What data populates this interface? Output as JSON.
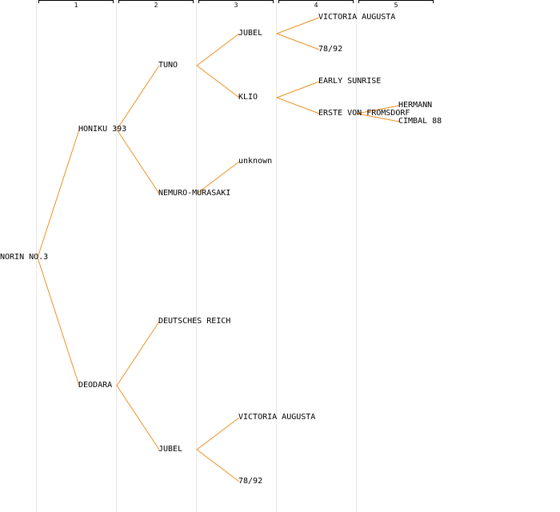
{
  "colors": {
    "edge": "#f0901e",
    "grid": "#e6e6e6",
    "text": "#000000"
  },
  "generations": [
    "1",
    "2",
    "3",
    "4",
    "5"
  ],
  "nodes": [
    {
      "id": "n0",
      "label": "NORIN NO.3",
      "gen": 0,
      "row": 15
    },
    {
      "id": "n1",
      "label": "HONIKU 393",
      "gen": 1,
      "row": 7
    },
    {
      "id": "n2",
      "label": "DEODARA",
      "gen": 1,
      "row": 23
    },
    {
      "id": "n3",
      "label": "TUNO",
      "gen": 2,
      "row": 3
    },
    {
      "id": "n4",
      "label": "NEMURO-MURASAKI",
      "gen": 2,
      "row": 11
    },
    {
      "id": "n5",
      "label": "DEUTSCHES REICH",
      "gen": 2,
      "row": 19
    },
    {
      "id": "n6",
      "label": "JUBEL",
      "gen": 2,
      "row": 27
    },
    {
      "id": "n7",
      "label": "JUBEL",
      "gen": 3,
      "row": 1
    },
    {
      "id": "n8",
      "label": "KLIO",
      "gen": 3,
      "row": 5
    },
    {
      "id": "n9",
      "label": "unknown",
      "gen": 3,
      "row": 9
    },
    {
      "id": "n10",
      "label": "VICTORIA AUGUSTA",
      "gen": 3,
      "row": 25
    },
    {
      "id": "n11",
      "label": "78/92",
      "gen": 3,
      "row": 29
    },
    {
      "id": "n12",
      "label": "VICTORIA AUGUSTA",
      "gen": 4,
      "row": 0
    },
    {
      "id": "n13",
      "label": "78/92",
      "gen": 4,
      "row": 2
    },
    {
      "id": "n14",
      "label": "EARLY SUNRISE",
      "gen": 4,
      "row": 4
    },
    {
      "id": "n15",
      "label": "ERSTE VON FROMSDORF",
      "gen": 4,
      "row": 6
    },
    {
      "id": "n16",
      "label": "HERMANN",
      "gen": 5,
      "row": 5.5
    },
    {
      "id": "n17",
      "label": "CIMBAL 88",
      "gen": 5,
      "row": 6.5
    }
  ],
  "edges": [
    [
      "n0",
      "n1"
    ],
    [
      "n0",
      "n2"
    ],
    [
      "n1",
      "n3"
    ],
    [
      "n1",
      "n4"
    ],
    [
      "n2",
      "n5"
    ],
    [
      "n2",
      "n6"
    ],
    [
      "n3",
      "n7"
    ],
    [
      "n3",
      "n8"
    ],
    [
      "n4",
      "n9"
    ],
    [
      "n6",
      "n10"
    ],
    [
      "n6",
      "n11"
    ],
    [
      "n7",
      "n12"
    ],
    [
      "n7",
      "n13"
    ],
    [
      "n8",
      "n14"
    ],
    [
      "n8",
      "n15"
    ],
    [
      "n15",
      "n16"
    ],
    [
      "n15",
      "n17"
    ]
  ]
}
